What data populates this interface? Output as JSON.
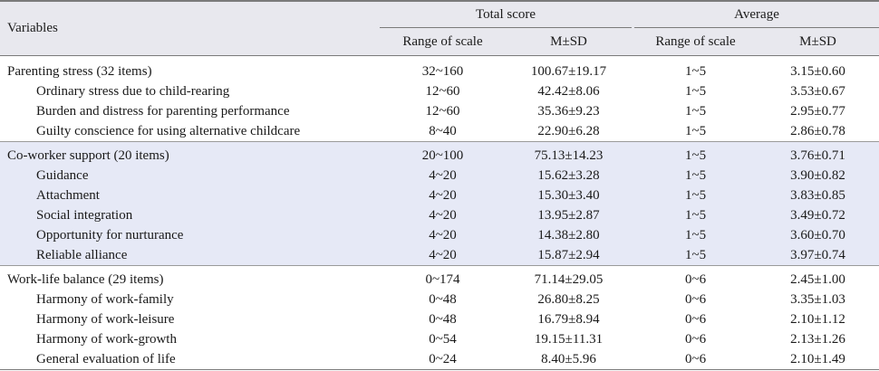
{
  "header": {
    "variables": "Variables",
    "total_score": "Total score",
    "average": "Average",
    "range_of_scale": "Range of scale",
    "m_sd": "M±SD"
  },
  "sections": [
    {
      "title": "Parenting stress (32 items)",
      "total_range": "32~160",
      "total_msd": "100.67±19.17",
      "avg_range": "1~5",
      "avg_msd": "3.15±0.60",
      "items": [
        {
          "label": "Ordinary stress due to child-rearing",
          "total_range": "12~60",
          "total_msd": "42.42±8.06",
          "avg_range": "1~5",
          "avg_msd": "3.53±0.67"
        },
        {
          "label": "Burden and distress for parenting performance",
          "total_range": "12~60",
          "total_msd": "35.36±9.23",
          "avg_range": "1~5",
          "avg_msd": "2.95±0.77"
        },
        {
          "label": "Guilty conscience for using alternative childcare",
          "total_range": "8~40",
          "total_msd": "22.90±6.28",
          "avg_range": "1~5",
          "avg_msd": "2.86±0.78"
        }
      ]
    },
    {
      "title": "Co-worker support (20 items)",
      "total_range": "20~100",
      "total_msd": "75.13±14.23",
      "avg_range": "1~5",
      "avg_msd": "3.76±0.71",
      "items": [
        {
          "label": "Guidance",
          "total_range": "4~20",
          "total_msd": "15.62±3.28",
          "avg_range": "1~5",
          "avg_msd": "3.90±0.82"
        },
        {
          "label": "Attachment",
          "total_range": "4~20",
          "total_msd": "15.30±3.40",
          "avg_range": "1~5",
          "avg_msd": "3.83±0.85"
        },
        {
          "label": "Social integration",
          "total_range": "4~20",
          "total_msd": "13.95±2.87",
          "avg_range": "1~5",
          "avg_msd": "3.49±0.72"
        },
        {
          "label": "Opportunity for nurturance",
          "total_range": "4~20",
          "total_msd": "14.38±2.80",
          "avg_range": "1~5",
          "avg_msd": "3.60±0.70"
        },
        {
          "label": "Reliable alliance",
          "total_range": "4~20",
          "total_msd": "15.87±2.94",
          "avg_range": "1~5",
          "avg_msd": "3.97±0.74"
        }
      ]
    },
    {
      "title": "Work-life balance (29 items)",
      "total_range": "0~174",
      "total_msd": "71.14±29.05",
      "avg_range": "0~6",
      "avg_msd": "2.45±1.00",
      "items": [
        {
          "label": "Harmony of work-family",
          "total_range": "0~48",
          "total_msd": "26.80±8.25",
          "avg_range": "0~6",
          "avg_msd": "3.35±1.03"
        },
        {
          "label": "Harmony of work-leisure",
          "total_range": "0~48",
          "total_msd": "16.79±8.94",
          "avg_range": "0~6",
          "avg_msd": "2.10±1.12"
        },
        {
          "label": "Harmony of work-growth",
          "total_range": "0~54",
          "total_msd": "19.15±11.31",
          "avg_range": "0~6",
          "avg_msd": "2.13±1.26"
        },
        {
          "label": "General evaluation of life",
          "total_range": "0~24",
          "total_msd": "8.40±5.96",
          "avg_range": "0~6",
          "avg_msd": "2.10±1.49"
        }
      ]
    }
  ],
  "colors": {
    "header_bg": "#e8e8ee",
    "band_bg": "#e6e9f6",
    "rule": "#7a7a7a"
  }
}
